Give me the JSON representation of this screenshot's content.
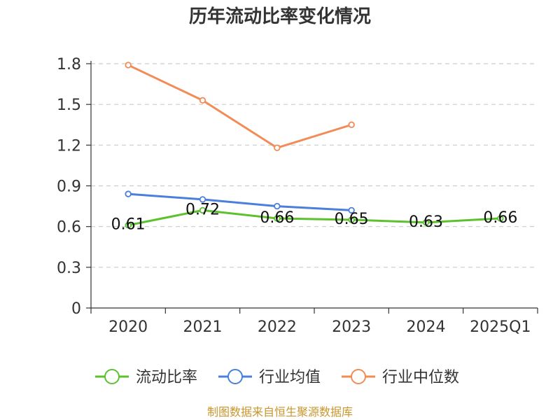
{
  "chart_data": {
    "type": "line",
    "title": "历年流动比率变化情况",
    "categories": [
      "2020",
      "2021",
      "2022",
      "2023",
      "2024",
      "2025Q1"
    ],
    "ylim": [
      0,
      1.8
    ],
    "yticks": [
      "0",
      "0.3",
      "0.6",
      "0.9",
      "1.2",
      "1.5",
      "1.8"
    ],
    "grid": true,
    "legend_position": "bottom",
    "series": [
      {
        "name": "流动比率",
        "color": "#5cc12e",
        "values": [
          0.61,
          0.72,
          0.66,
          0.65,
          0.63,
          0.66
        ],
        "labels": [
          "0.61",
          "0.72",
          "0.66",
          "0.65",
          "0.63",
          "0.66"
        ]
      },
      {
        "name": "行业均值",
        "color": "#4a7fdc",
        "values": [
          0.84,
          0.8,
          0.75,
          0.72,
          null,
          null
        ]
      },
      {
        "name": "行业中位数",
        "color": "#f28c56",
        "values": [
          1.79,
          1.53,
          1.18,
          1.35,
          null,
          null
        ]
      }
    ]
  },
  "footer": {
    "source": "制图数据来自恒生聚源数据库"
  }
}
